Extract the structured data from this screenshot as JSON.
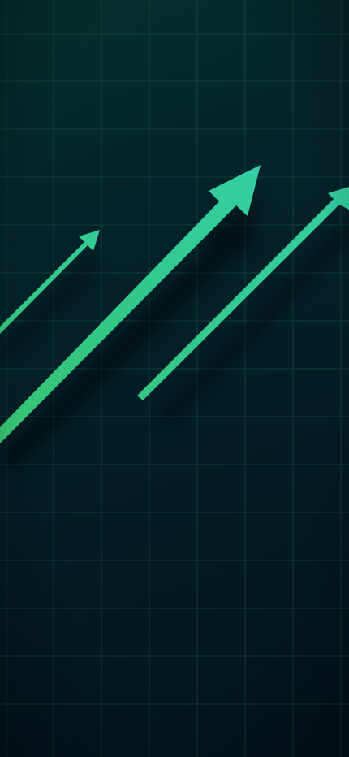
{
  "background": {
    "gradient_top": "#06312d",
    "gradient_mid": "#04232a",
    "gradient_bottom": "#02141c",
    "grid_color": "#1f5a45"
  },
  "arrows": {
    "accent_light": "#34cfa3",
    "accent_dark": "#33c27a",
    "icons": [
      "small-arrow-icon",
      "large-arrow-icon",
      "thin-arrow-icon"
    ]
  }
}
